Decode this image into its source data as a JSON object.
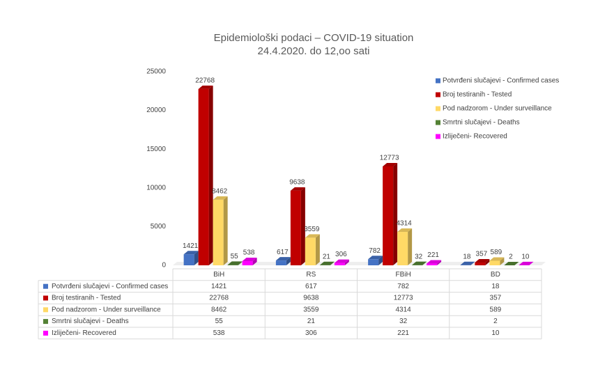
{
  "chart_data": {
    "type": "bar3d",
    "title": "Epidemiološki podaci – COVID-19 situation",
    "subtitle": "24.4.2020. do 12,oo sati",
    "categories": [
      "BiH",
      "RS",
      "FBiH",
      "BD"
    ],
    "series": [
      {
        "name": "Potvrđeni slučajevi - Confirmed cases",
        "color": "#4472c4",
        "values": [
          1421,
          617,
          782,
          18
        ]
      },
      {
        "name": "Broj testiranih - Tested",
        "color": "#c00000",
        "values": [
          22768,
          9638,
          12773,
          357
        ]
      },
      {
        "name": "Pod nadzorom - Under surveillance",
        "color": "#ffd966",
        "values": [
          8462,
          3559,
          4314,
          589
        ]
      },
      {
        "name": "Smrtni slučajevi - Deaths",
        "color": "#548235",
        "values": [
          55,
          21,
          32,
          2
        ]
      },
      {
        "name": "Izliječeni- Recovered",
        "color": "#ff00ff",
        "values": [
          538,
          306,
          221,
          10
        ]
      }
    ],
    "ylim": [
      0,
      25000
    ],
    "yticks": [
      0,
      5000,
      10000,
      15000,
      20000,
      25000
    ],
    "legend": "right",
    "data_table": true
  }
}
